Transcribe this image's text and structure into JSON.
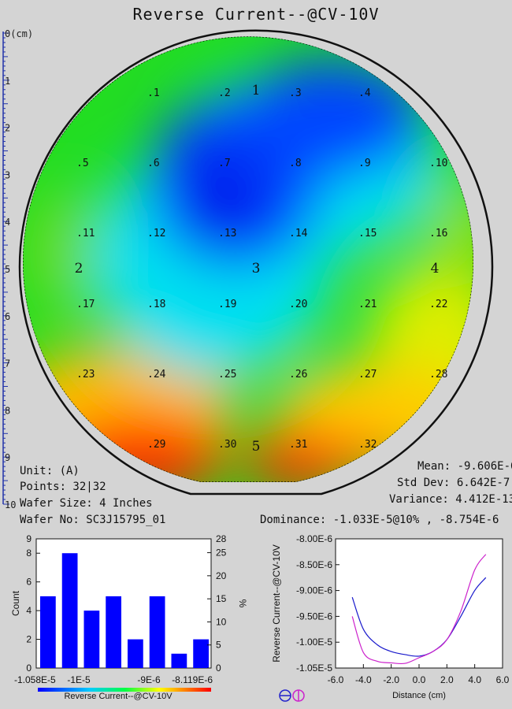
{
  "title": "Reverse Current--@CV-10V",
  "ruler": {
    "ticks": [
      "0(cm)",
      "1",
      "2",
      "3",
      "4",
      "5",
      "6",
      "7",
      "8",
      "9",
      "10"
    ]
  },
  "wafer": {
    "site_labels": [
      ".1",
      ".2",
      ".3",
      ".4",
      ".5",
      ".6",
      ".7",
      ".8",
      ".9",
      ".10",
      ".11",
      ".12",
      ".13",
      ".14",
      ".15",
      ".16",
      ".17",
      ".18",
      ".19",
      ".20",
      ".21",
      ".22",
      ".23",
      ".24",
      ".25",
      ".26",
      ".27",
      ".28",
      ".29",
      ".30",
      ".31",
      ".32"
    ],
    "region_labels": [
      "1",
      "2",
      "3",
      "4",
      "5"
    ],
    "colors": {
      "low": "#0022ff",
      "mid": "#00dd33",
      "high": "#ff1100"
    }
  },
  "stats_left": {
    "unit": "Unit: (A)",
    "points": "Points: 32|32",
    "wafer_size": "Wafer Size: 4 Inches",
    "wafer_no": "Wafer No: SC3J15795_01"
  },
  "stats_right": {
    "mean": "Mean: -9.606E-6",
    "std_dev": "Std Dev: 6.642E-7",
    "variance": "Variance: 4.412E-13",
    "dominance": "Dominance: -1.033E-5@10% , -8.754E-6"
  },
  "chart_data": [
    {
      "type": "bar",
      "title": "",
      "xlabel": "Reverse Current--@CV-10V",
      "ylabel": "Count",
      "y2label": "%",
      "ylim": [
        0,
        9
      ],
      "y2lim": [
        0,
        28
      ],
      "yticks": [
        "0",
        "2",
        "4",
        "6",
        "8"
      ],
      "ytop": "9",
      "y2ticks": [
        "0",
        "5",
        "10",
        "15",
        "20",
        "25",
        "28"
      ],
      "xtick_labels": [
        "-1.058E-5",
        "-1E-5",
        "-9E-6",
        "-8.119E-6"
      ],
      "values": [
        5,
        8,
        4,
        5,
        2,
        5,
        1,
        2
      ]
    },
    {
      "type": "line",
      "title": "",
      "xlabel": "Distance (cm)",
      "ylabel": "Reverse Current--@CV-10V",
      "xlim": [
        -6,
        6
      ],
      "ylim": [
        -1.05e-05,
        -8e-06
      ],
      "xtick_labels": [
        "-6.0",
        "-4.0",
        "-2.0",
        "0.0",
        "2.0",
        "4.0",
        "6.0"
      ],
      "ytick_labels": [
        "-8.00E-6",
        "-8.50E-6",
        "-9.00E-6",
        "-9.50E-6",
        "-1.00E-5",
        "-1.05E-5"
      ],
      "series": [
        {
          "color": "#1a1acc",
          "x": [
            -4.8,
            -4.0,
            -3.0,
            -2.0,
            -1.0,
            0.0,
            1.0,
            2.0,
            3.0,
            4.0,
            4.8
          ],
          "y": [
            -9.13e-06,
            -9.75e-06,
            -1.005e-05,
            -1.018e-05,
            -1.024e-05,
            -1.027e-05,
            -1.018e-05,
            -9.95e-06,
            -9.5e-06,
            -9e-06,
            -8.75e-06
          ]
        },
        {
          "color": "#cc22cc",
          "x": [
            -4.8,
            -4.0,
            -3.0,
            -2.0,
            -1.0,
            0.0,
            1.0,
            2.0,
            3.0,
            4.0,
            4.8
          ],
          "y": [
            -9.5e-06,
            -1.02e-05,
            -1.037e-05,
            -1.04e-05,
            -1.041e-05,
            -1.03e-05,
            -1.018e-05,
            -9.95e-06,
            -9.4e-06,
            -8.6e-06,
            -8.3e-06
          ]
        }
      ]
    }
  ]
}
